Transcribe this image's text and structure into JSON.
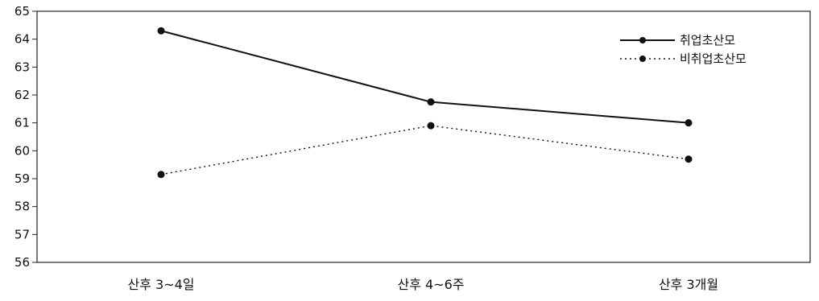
{
  "chart_data": {
    "type": "line",
    "categories": [
      "산후 3~4일",
      "산후 4~6주",
      "산후 3개월"
    ],
    "series": [
      {
        "name": "취업초산모",
        "values": [
          64.3,
          61.75,
          61.0
        ],
        "line_style": "solid",
        "color": "#111111"
      },
      {
        "name": "비취업초산모",
        "values": [
          59.15,
          60.9,
          59.7
        ],
        "line_style": "dotted",
        "color": "#111111"
      }
    ],
    "ylim": [
      56,
      65
    ],
    "yticks": [
      56,
      57,
      58,
      59,
      60,
      61,
      62,
      63,
      64,
      65
    ],
    "legend_position": "top-right",
    "grid": false
  }
}
